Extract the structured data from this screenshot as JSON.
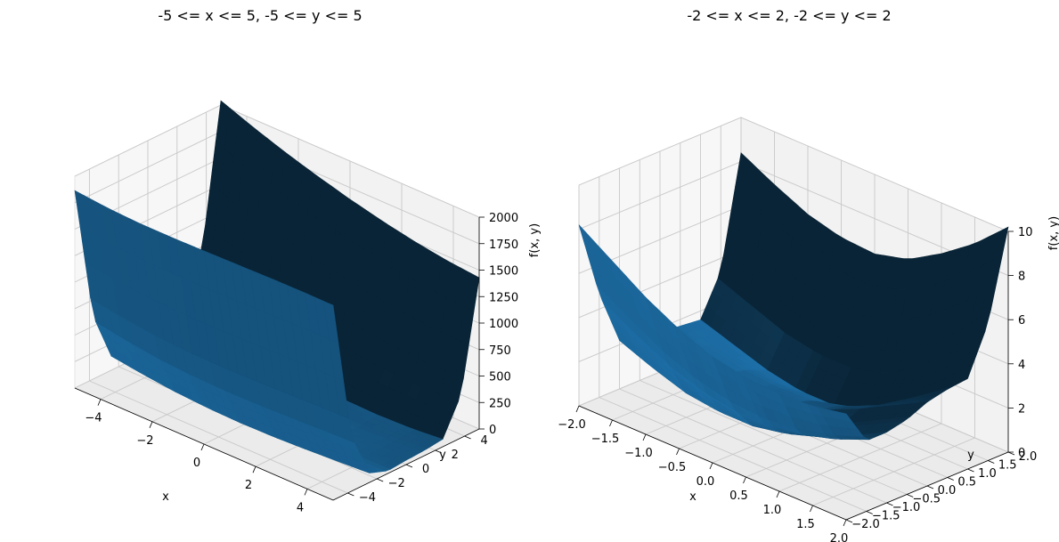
{
  "chart_data": [
    {
      "type": "surface",
      "title": "-5 <= x <= 5, -5 <= y <= 5",
      "xlabel": "x",
      "ylabel": "y",
      "zlabel": "f(x, y)",
      "xlim": [
        -5,
        5
      ],
      "ylim": [
        -5,
        5
      ],
      "zlim": [
        0,
        2000
      ],
      "x_ticks": [
        "−4",
        "−2",
        "0",
        "2",
        "4"
      ],
      "y_ticks": [
        "−4",
        "−2",
        "0",
        "2",
        "4"
      ],
      "z_ticks": [
        "0",
        "250",
        "500",
        "750",
        "1000",
        "1250",
        "1500",
        "1750",
        "2000"
      ],
      "grid": true,
      "surface_color": "#1f77b4",
      "grid_x": [
        -5,
        -3.75,
        -2.5,
        -1.25,
        0,
        1.25,
        2.5,
        3.75,
        5
      ],
      "grid_y": [
        -5,
        -3.75,
        -2.5,
        -1.25,
        0,
        1.25,
        2.5,
        3.75,
        5
      ],
      "z": [
        [
          1864,
          1834,
          1820,
          1819,
          1824,
          1831,
          1838,
          1842,
          1840
        ],
        [
          597,
          542,
          503,
          481,
          474,
          478,
          489,
          501,
          510
        ],
        [
          134,
          91,
          59,
          40,
          33,
          38,
          51,
          69,
          88
        ],
        [
          53,
          21,
          3,
          2,
          8,
          15,
          18,
          20,
          25
        ],
        [
          103,
          58,
          21,
          4,
          1,
          5,
          13,
          24,
          41
        ],
        [
          137,
          83,
          40,
          15,
          2,
          1,
          10,
          26,
          50
        ],
        [
          231,
          168,
          117,
          81,
          55,
          39,
          34,
          44,
          71
        ],
        [
          746,
          661,
          587,
          525,
          474,
          432,
          402,
          390,
          403
        ],
        [
          2040,
          1923,
          1817,
          1723,
          1639,
          1566,
          1505,
          1458,
          1428
        ]
      ]
    },
    {
      "type": "surface",
      "title": "-2 <= x <= 2, -2 <= y <= 2",
      "xlabel": "x",
      "ylabel": "y",
      "zlabel": "f(x, y)",
      "xlim": [
        -2,
        2
      ],
      "ylim": [
        -2,
        2
      ],
      "zlim": [
        0,
        10
      ],
      "x_ticks": [
        "−2.0",
        "−1.5",
        "−1.0",
        "−0.5",
        "0.0",
        "0.5",
        "1.0",
        "1.5",
        "2.0"
      ],
      "y_ticks": [
        "−2.0",
        "−1.5",
        "−1.0",
        "−0.5",
        "0.0",
        "0.5",
        "1.0",
        "1.5",
        "2.0"
      ],
      "z_ticks": [
        "0",
        "2",
        "4",
        "6",
        "8",
        "10"
      ],
      "grid": true,
      "surface_color": "#1f77b4",
      "grid_x": [
        -2,
        -1.5,
        -1,
        -0.5,
        0,
        0.5,
        1,
        1.5,
        2
      ],
      "grid_y": [
        -2,
        -1.5,
        -1,
        -0.5,
        0,
        0.5,
        1,
        1.5,
        2
      ],
      "z": [
        [
          8.2,
          7.2,
          6.2,
          5.4,
          4.8,
          4.5,
          4.4,
          4.5,
          4.8
        ],
        [
          4.7,
          3.8,
          3.0,
          2.4,
          2.1,
          2.0,
          2.2,
          2.6,
          3.2
        ],
        [
          2.2,
          1.6,
          1.1,
          0.9,
          0.9,
          1.2,
          1.7,
          2.4,
          3.2
        ],
        [
          1.5,
          1.1,
          0.8,
          0.7,
          0.8,
          1.2,
          1.8,
          2.6,
          3.4
        ],
        [
          1.8,
          1.5,
          1.2,
          1.1,
          1.2,
          1.5,
          2.2,
          3.0,
          3.8
        ],
        [
          1.7,
          1.3,
          1.0,
          0.9,
          0.9,
          1.3,
          2.0,
          3.0,
          4.0
        ],
        [
          1.6,
          1.1,
          0.6,
          0.3,
          0.3,
          0.7,
          1.5,
          2.7,
          4.1
        ],
        [
          3.4,
          2.8,
          2.2,
          1.9,
          1.9,
          2.3,
          3.2,
          4.5,
          6.2
        ],
        [
          8.4,
          7.6,
          6.9,
          6.5,
          6.4,
          6.8,
          7.7,
          8.8,
          10.2
        ]
      ]
    }
  ]
}
